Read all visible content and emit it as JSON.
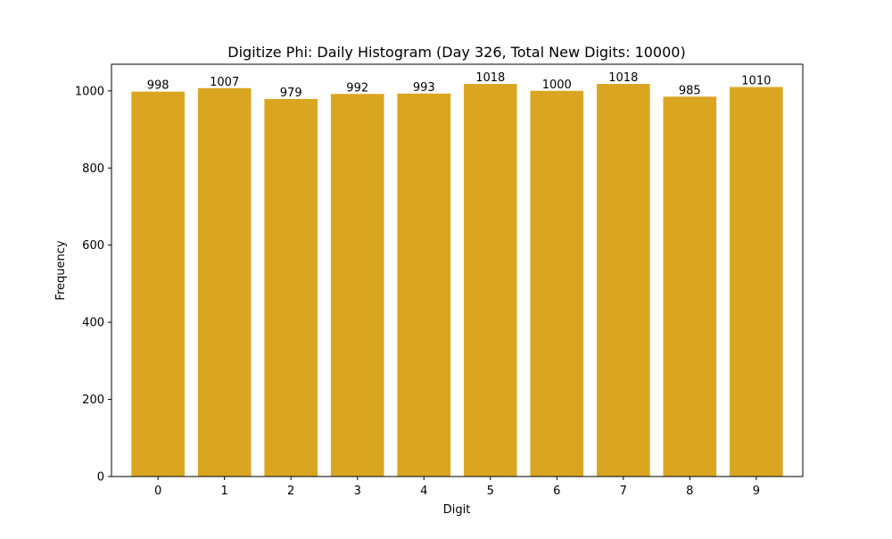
{
  "chart_data": {
    "type": "bar",
    "title": "Digitize Phi: Daily Histogram (Day 326, Total New Digits: 10000)",
    "xlabel": "Digit",
    "ylabel": "Frequency",
    "categories": [
      "0",
      "1",
      "2",
      "3",
      "4",
      "5",
      "6",
      "7",
      "8",
      "9"
    ],
    "values": [
      998,
      1007,
      979,
      992,
      993,
      1018,
      1000,
      1018,
      985,
      1010
    ],
    "data_labels": [
      "998",
      "1007",
      "979",
      "992",
      "993",
      "1018",
      "1000",
      "1018",
      "985",
      "1010"
    ],
    "ylim": [
      0,
      1069
    ],
    "yticks": [
      0,
      200,
      400,
      600,
      800,
      1000
    ],
    "ytick_labels": [
      "0",
      "200",
      "400",
      "600",
      "800",
      "1000"
    ],
    "grid": false,
    "legend": "none",
    "bar_color": "#DAA520"
  }
}
